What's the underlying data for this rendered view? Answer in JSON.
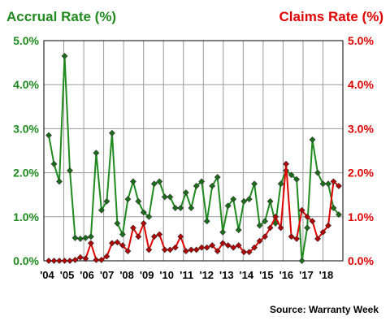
{
  "chart_data": {
    "type": "line",
    "title_left": "Accrual Rate (%)",
    "title_right": "Claims Rate (%)",
    "source": "Source: Warranty Week",
    "left_axis": {
      "ylim": [
        0,
        5
      ],
      "ticks": [
        "0.0%",
        "1.0%",
        "2.0%",
        "3.0%",
        "4.0%",
        "5.0%"
      ],
      "color": "#1f8a1f"
    },
    "right_axis": {
      "ylim": [
        0,
        5
      ],
      "ticks": [
        "0.0%",
        "1.0%",
        "2.0%",
        "3.0%",
        "4.0%",
        "5.0%"
      ],
      "color": "#e00000"
    },
    "x_tick_labels": [
      "'04",
      "'05",
      "'06",
      "'07",
      "'08",
      "'09",
      "'10",
      "'11",
      "'12",
      "'13",
      "'14",
      "'15",
      "'16",
      "'17",
      "'18"
    ],
    "grid": true,
    "series": [
      {
        "key": "accrual",
        "axis": "left",
        "color": "#1f8a1f",
        "marker_color": "#1a6e1a",
        "values": [
          2.85,
          2.2,
          1.8,
          4.65,
          2.05,
          0.52,
          0.5,
          0.52,
          0.55,
          2.45,
          1.15,
          1.35,
          2.9,
          0.85,
          0.6,
          1.4,
          1.8,
          1.35,
          1.1,
          1.0,
          1.75,
          1.8,
          1.45,
          1.45,
          1.2,
          1.2,
          1.55,
          1.2,
          1.7,
          1.8,
          0.9,
          1.7,
          1.9,
          0.65,
          1.25,
          1.4,
          0.7,
          1.35,
          1.4,
          1.75,
          0.8,
          0.9,
          1.35,
          0.85,
          1.75,
          2.05,
          1.95,
          1.85,
          0.0,
          0.75,
          2.75,
          2.0,
          1.75,
          1.75,
          1.2,
          1.05
        ]
      },
      {
        "key": "claims",
        "axis": "right",
        "color": "#e00000",
        "marker_color": "#b00000",
        "values": [
          0.0,
          0.0,
          0.0,
          0.0,
          0.0,
          0.02,
          0.08,
          0.05,
          0.4,
          0.02,
          0.02,
          0.1,
          0.4,
          0.42,
          0.35,
          0.22,
          0.75,
          0.55,
          0.85,
          0.25,
          0.55,
          0.6,
          0.25,
          0.25,
          0.3,
          0.55,
          0.22,
          0.25,
          0.25,
          0.3,
          0.3,
          0.35,
          0.22,
          0.4,
          0.35,
          0.3,
          0.35,
          0.2,
          0.2,
          0.3,
          0.45,
          0.55,
          0.75,
          1.0,
          0.75,
          2.2,
          0.55,
          0.5,
          1.15,
          1.0,
          0.9,
          0.5,
          0.65,
          0.8,
          1.8,
          1.7
        ]
      }
    ]
  }
}
